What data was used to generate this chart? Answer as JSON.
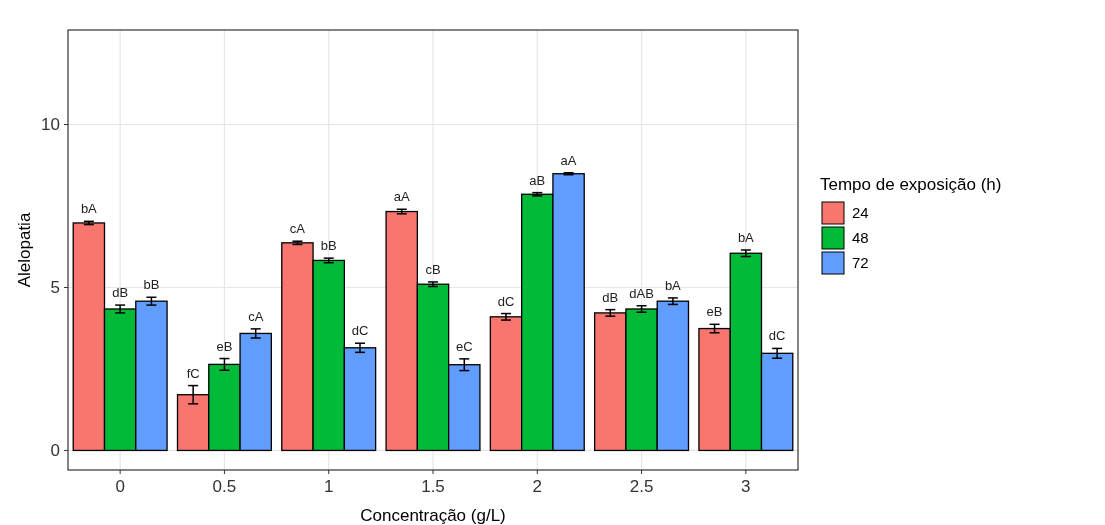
{
  "chart_data": {
    "type": "bar",
    "xlabel": "Concentração (g/L)",
    "ylabel": "Alelopatia",
    "legend_title": "Tempo de exposição (h)",
    "legend": "right",
    "grid": true,
    "categories": [
      "0",
      "0.5",
      "1",
      "1.5",
      "2",
      "2.5",
      "3"
    ],
    "ylim": [
      -0.6,
      12.9
    ],
    "yticks": [
      0,
      5,
      10
    ],
    "series": [
      {
        "name": "24",
        "color": "#f8766d",
        "values": [
          6.98,
          1.71,
          6.37,
          7.33,
          4.1,
          4.22,
          3.74
        ],
        "errors": [
          0.05,
          0.28,
          0.05,
          0.07,
          0.1,
          0.1,
          0.13
        ],
        "value_labels": [
          "bA",
          "fC",
          "cA",
          "aA",
          "dC",
          "dB",
          "eB"
        ]
      },
      {
        "name": "48",
        "color": "#00ba38",
        "values": [
          4.34,
          2.64,
          5.83,
          5.1,
          7.86,
          4.34,
          6.05
        ],
        "errors": [
          0.12,
          0.18,
          0.07,
          0.07,
          0.05,
          0.1,
          0.1
        ],
        "value_labels": [
          "dB",
          "eB",
          "bB",
          "cB",
          "aB",
          "dAB",
          "bA"
        ]
      },
      {
        "name": "72",
        "color": "#619cff",
        "values": [
          4.58,
          3.59,
          3.15,
          2.63,
          8.49,
          4.58,
          2.98
        ],
        "errors": [
          0.12,
          0.14,
          0.14,
          0.18,
          0.03,
          0.1,
          0.15
        ],
        "value_labels": [
          "bB",
          "cA",
          "dC",
          "eC",
          "aA",
          "bA",
          "dC"
        ]
      }
    ]
  }
}
